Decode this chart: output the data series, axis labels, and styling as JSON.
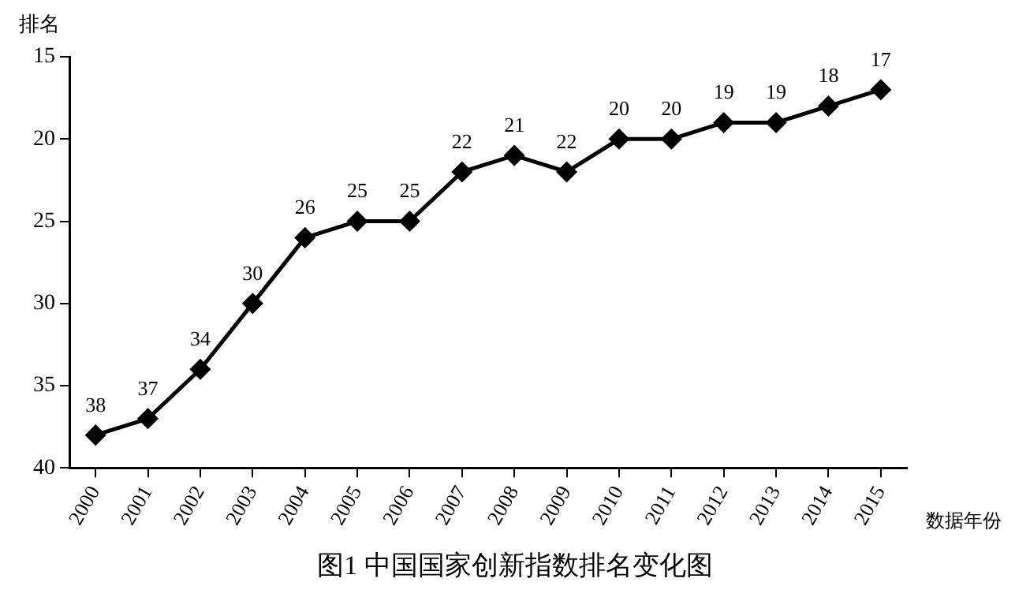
{
  "chart_data": {
    "type": "line",
    "title": "图1 中国国家创新指数排名变化图",
    "ylabel": "排名",
    "xlabel": "数据年份",
    "categories": [
      "2000",
      "2001",
      "2002",
      "2003",
      "2004",
      "2005",
      "2006",
      "2007",
      "2008",
      "2009",
      "2010",
      "2011",
      "2012",
      "2013",
      "2014",
      "2015"
    ],
    "series": [
      {
        "color": "#000000",
        "values": [
          38,
          37,
          34,
          30,
          26,
          25,
          25,
          22,
          21,
          22,
          20,
          20,
          19,
          19,
          18,
          17
        ]
      }
    ],
    "ylim": [
      40,
      15
    ],
    "yticks": [
      15,
      20,
      25,
      30,
      35,
      40
    ],
    "grid": false,
    "legend": false,
    "marker": "diamond",
    "line_style": "solid",
    "data_labels": true
  }
}
